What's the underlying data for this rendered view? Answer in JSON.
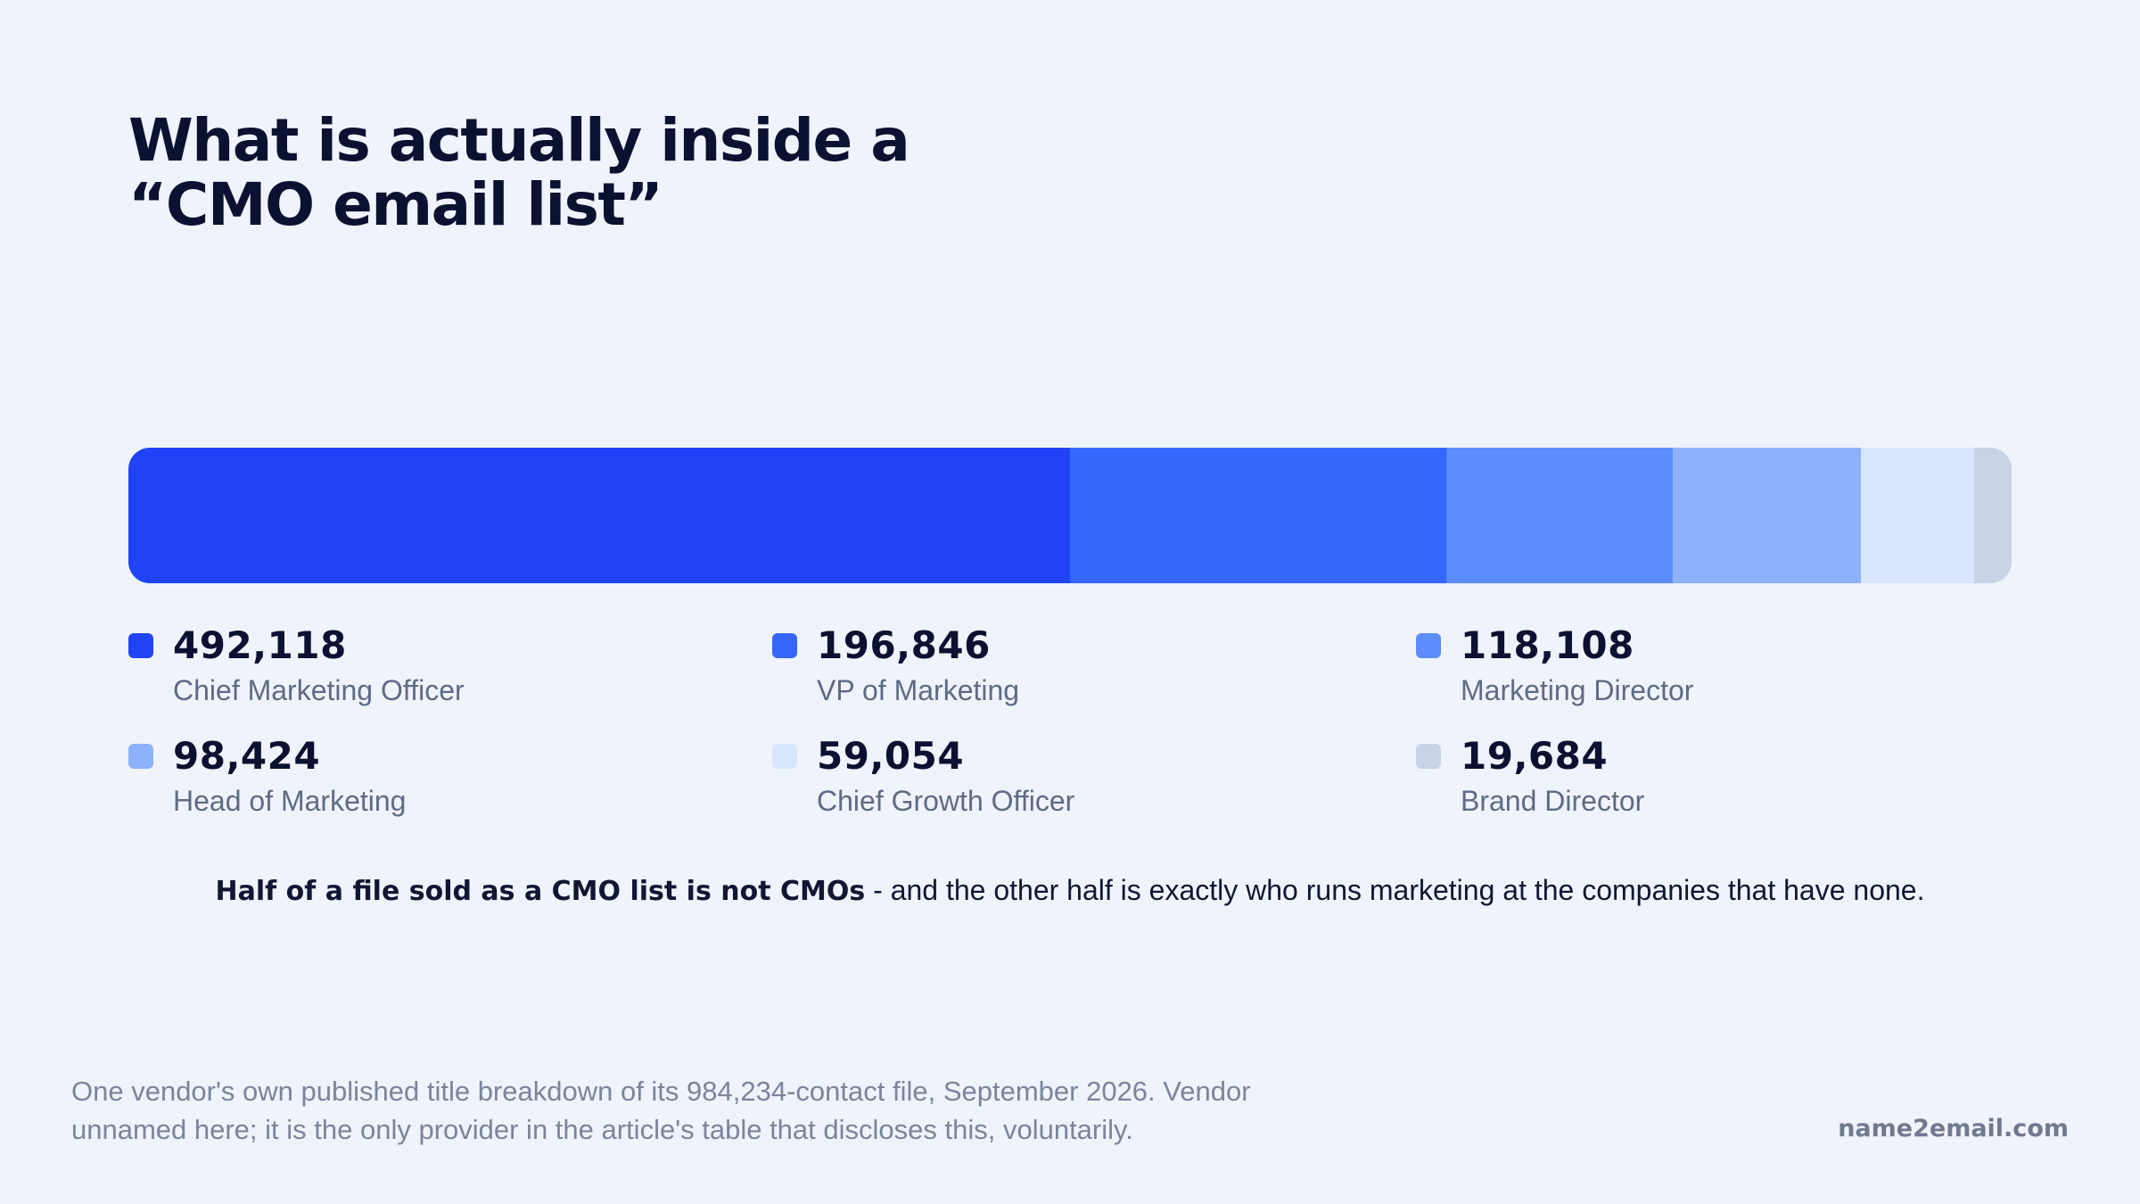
{
  "title": {
    "line1": "What is actually inside a",
    "line2": "“CMO email list”"
  },
  "chart_data": {
    "type": "bar",
    "orientation": "horizontal-stacked",
    "total": 984234,
    "categories": [
      "Chief Marketing Officer",
      "VP of Marketing",
      "Marketing Director",
      "Head of Marketing",
      "Chief Growth Officer",
      "Brand Director"
    ],
    "values": [
      492118,
      196846,
      118108,
      98424,
      59054,
      19684
    ],
    "value_labels": [
      "492,118",
      "196,846",
      "118,108",
      "98,424",
      "59,054",
      "19,684"
    ],
    "colors": [
      "#2044f5",
      "#3566fd",
      "#5d8cfc",
      "#8db2fb",
      "#d9e5fd",
      "#c8d3e5"
    ],
    "legend_placement": "bottom",
    "grid": false
  },
  "note": {
    "bold": "Half of a file sold as a CMO list is not CMOs",
    "rest": " - and the other half is exactly who runs marketing at the companies that have none."
  },
  "source": {
    "line1": "One vendor's own published title breakdown of its 984,234-contact file, September 2026. Vendor",
    "line2": "unnamed here; it is the only provider in the article's table that discloses this, voluntarily."
  },
  "brand": "name2email.com"
}
